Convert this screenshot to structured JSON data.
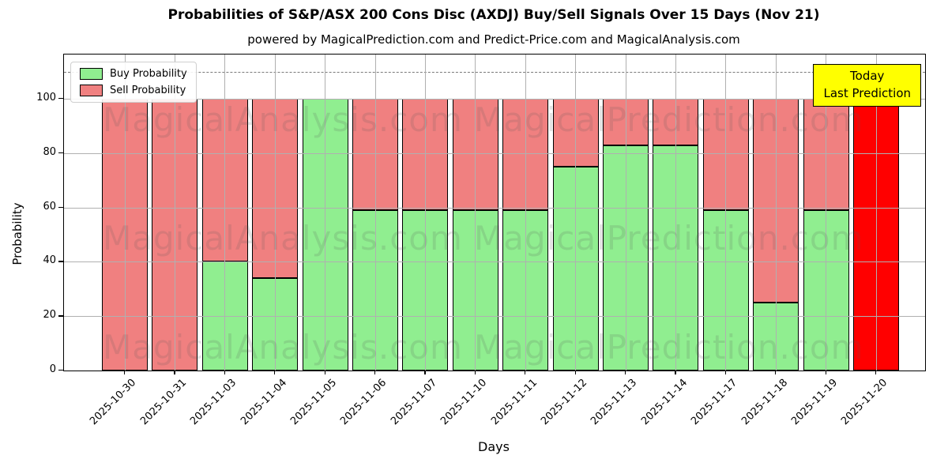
{
  "title": "Probabilities of S&P/ASX 200 Cons Disc (AXDJ) Buy/Sell Signals Over 15 Days (Nov 21)",
  "subtitle": "powered by MagicalPrediction.com and Predict-Price.com and MagicalAnalysis.com",
  "annotation": {
    "line1": "Today",
    "line2": "Last Prediction"
  },
  "watermarks": [
    "MagicalAnalysis.com",
    "MagicalPrediction.com"
  ],
  "colors": {
    "buy": "#90ee90",
    "sell": "#f08080",
    "today": "#ff0000",
    "annotation_bg": "#ffff00",
    "grid": "#b0b0b0",
    "bar_edge": "#000000"
  },
  "chart_data": {
    "type": "bar",
    "stacked": true,
    "title": "Probabilities of S&P/ASX 200 Cons Disc (AXDJ) Buy/Sell Signals Over 15 Days (Nov 21)",
    "xlabel": "Days",
    "ylabel": "Probability",
    "categories": [
      "2025-10-30",
      "2025-10-31",
      "2025-11-03",
      "2025-11-04",
      "2025-11-05",
      "2025-11-06",
      "2025-11-07",
      "2025-11-10",
      "2025-11-11",
      "2025-11-12",
      "2025-11-13",
      "2025-11-14",
      "2025-11-17",
      "2025-11-18",
      "2025-11-19",
      "2025-11-20"
    ],
    "series": [
      {
        "name": "Buy Probability",
        "color": "#90ee90",
        "values": [
          0,
          0,
          40,
          34,
          100,
          59,
          59,
          59,
          59,
          75,
          83,
          83,
          59,
          25,
          59,
          0
        ]
      },
      {
        "name": "Sell Probability",
        "color": "#f08080",
        "values": [
          100,
          100,
          60,
          66,
          0,
          41,
          41,
          41,
          41,
          25,
          17,
          17,
          41,
          75,
          41,
          100
        ]
      }
    ],
    "today_bar": {
      "index": 15,
      "category": "2025-11-20",
      "value": 100,
      "color": "#ff0000"
    },
    "ylim": [
      0,
      116.3
    ],
    "yticks": [
      0,
      20,
      40,
      60,
      80,
      100
    ],
    "dashed_line_y": 110,
    "grid": true,
    "legend_position": "upper left"
  }
}
